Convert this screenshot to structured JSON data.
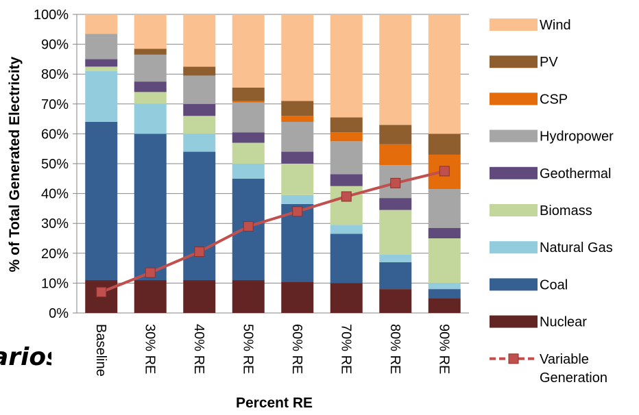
{
  "cutoff_title_fragment": "arios",
  "chart_data": {
    "type": "bar",
    "stacked": true,
    "title": "",
    "xlabel": "Percent RE",
    "ylabel": "% of Total Generated  Electricity",
    "ylim": [
      0,
      100
    ],
    "y_ticks": [
      "0%",
      "10%",
      "20%",
      "30%",
      "40%",
      "50%",
      "60%",
      "70%",
      "80%",
      "90%",
      "100%"
    ],
    "grid": true,
    "legend_position": "right",
    "categories": [
      "Baseline",
      "30% RE",
      "40% RE",
      "50% RE",
      "60% RE",
      "70% RE",
      "80% RE",
      "90% RE"
    ],
    "series": [
      {
        "name": "Nuclear",
        "color": "#632523",
        "values": [
          11,
          11,
          11,
          11,
          10.5,
          10,
          8,
          5
        ]
      },
      {
        "name": "Coal",
        "color": "#376092",
        "values": [
          53,
          49,
          43,
          34,
          26,
          16.5,
          9,
          3
        ]
      },
      {
        "name": "Natural Gas",
        "color": "#93CDDD",
        "values": [
          17,
          10,
          6,
          5,
          3,
          3,
          2.5,
          2
        ]
      },
      {
        "name": "Biomass",
        "color": "#C3D69B",
        "values": [
          1.5,
          4,
          6,
          7,
          10.5,
          13,
          15,
          15
        ]
      },
      {
        "name": "Geothermal",
        "color": "#604A7B",
        "values": [
          2.5,
          3.5,
          4,
          3.5,
          4,
          4,
          4,
          3.5
        ]
      },
      {
        "name": "Hydropower",
        "color": "#A6A6A6",
        "values": [
          8.5,
          9,
          9.5,
          10,
          10,
          11,
          11,
          13
        ]
      },
      {
        "name": "CSP",
        "color": "#E46C0A",
        "values": [
          0,
          0,
          0,
          0.5,
          2,
          3,
          7,
          11.5
        ]
      },
      {
        "name": "PV",
        "color": "#8E5E2E",
        "values": [
          0,
          2,
          3,
          4.5,
          5,
          5,
          6.5,
          7
        ]
      },
      {
        "name": "Wind",
        "color": "#FAC090",
        "values": [
          6.5,
          11.5,
          17.5,
          24.5,
          29,
          34.5,
          37,
          40
        ]
      }
    ],
    "line_series": {
      "name": "Variable Generation",
      "color": "#C0504D",
      "values": [
        7,
        13.5,
        20.5,
        29,
        34,
        39,
        43.5,
        47.5
      ]
    },
    "legend_order": [
      "Wind",
      "PV",
      "CSP",
      "Hydropower",
      "Geothermal",
      "Biomass",
      "Natural Gas",
      "Coal",
      "Nuclear",
      "Variable Generation"
    ]
  }
}
